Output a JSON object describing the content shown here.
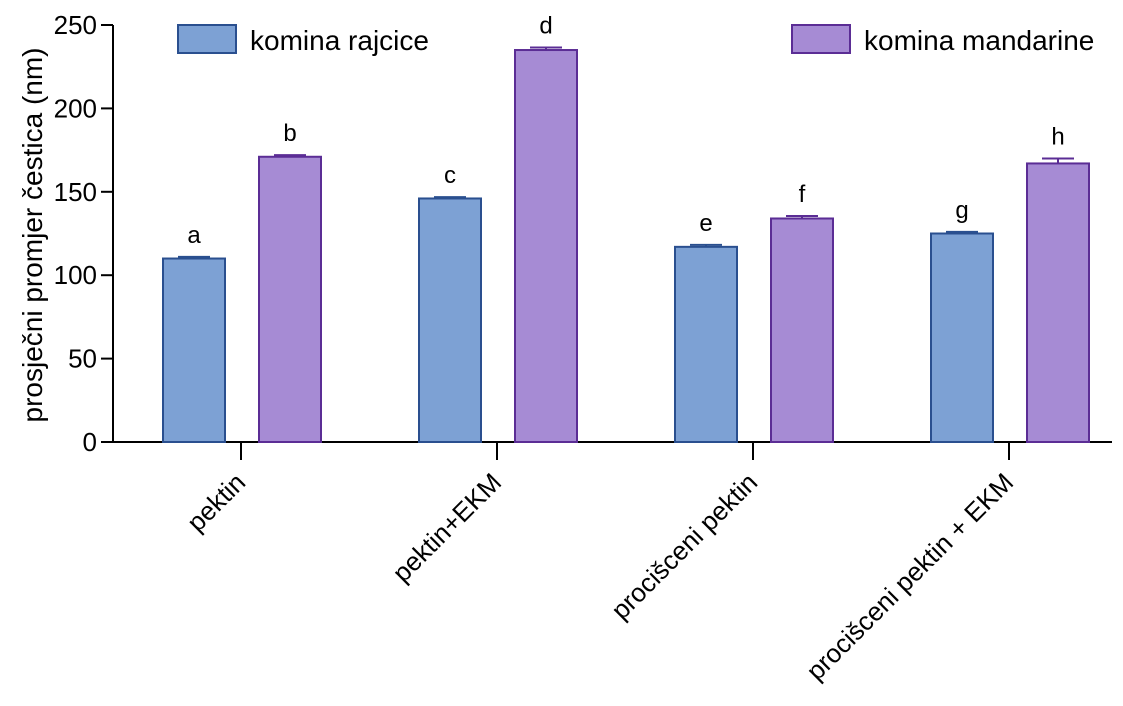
{
  "chart_data": {
    "type": "bar",
    "title": "",
    "xlabel": "",
    "ylabel": "prosječni promjer čestica (nm)",
    "ylim": [
      0,
      250
    ],
    "yticks": [
      0,
      50,
      100,
      150,
      200,
      250
    ],
    "categories": [
      "pektin",
      "pektin+EKM",
      "procišceni pektin",
      "procišceni pektin + EKM"
    ],
    "series": [
      {
        "name": "komina rajcice",
        "color": "#7da1d4",
        "stroke": "#2a4f8f",
        "values": [
          110,
          146,
          117,
          125
        ],
        "errors": [
          1,
          0.8,
          1.2,
          1
        ],
        "labels": [
          "a",
          "c",
          "e",
          "g"
        ]
      },
      {
        "name": "komina mandarine",
        "color": "#a68bd4",
        "stroke": "#5b2d95",
        "values": [
          171,
          235,
          134,
          167
        ],
        "errors": [
          1,
          1.5,
          1.5,
          3
        ],
        "labels": [
          "b",
          "d",
          "f",
          "h"
        ]
      }
    ],
    "legend": "top",
    "grid": false
  }
}
